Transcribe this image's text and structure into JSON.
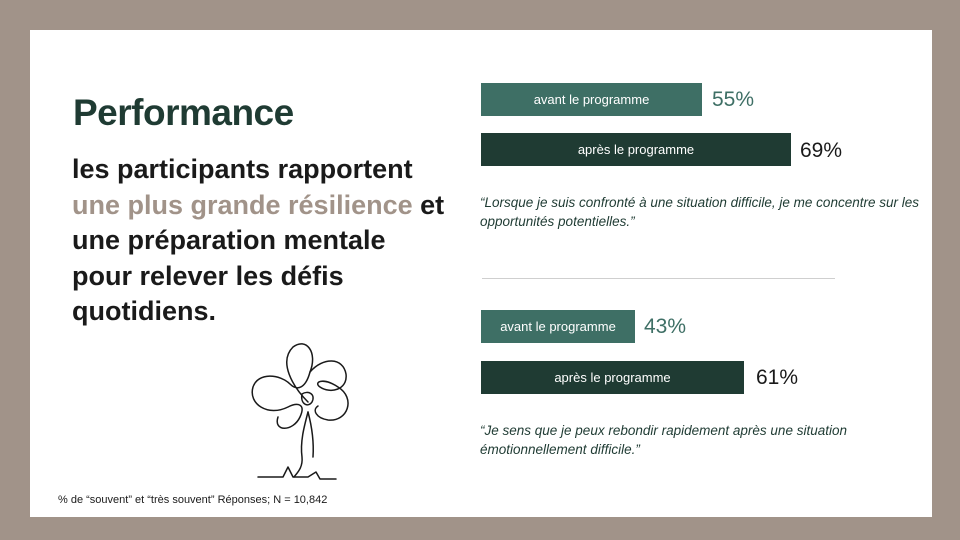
{
  "title": "Performance",
  "headline": {
    "part1": "les participants rapportent ",
    "highlight": "une plus grande résilience",
    "part2": " et une préparation mentale pour relever les défis quotidiens."
  },
  "footnote": "% de “souvent” et “très souvent” Réponses; N = 10,842",
  "colors": {
    "frame": "#a19389",
    "before_bar": "#3e6f65",
    "after_bar": "#1f3b33",
    "highlight_text": "#a19389"
  },
  "chart_data": [
    {
      "type": "bar",
      "categories": [
        "avant le programme",
        "après le programme"
      ],
      "values": [
        55,
        69
      ],
      "value_labels": [
        "55%",
        "69%"
      ],
      "quote": "“Lorsque je suis confronté à une situation difficile, je me concentre sur les opportunités potentielles.”"
    },
    {
      "type": "bar",
      "categories": [
        "avant le programme",
        "après le programme"
      ],
      "values": [
        43,
        61
      ],
      "value_labels": [
        "43%",
        "61%"
      ],
      "quote": "“Je sens que je peux rebondir rapidement après une situation émotionnellement difficile.”"
    }
  ]
}
